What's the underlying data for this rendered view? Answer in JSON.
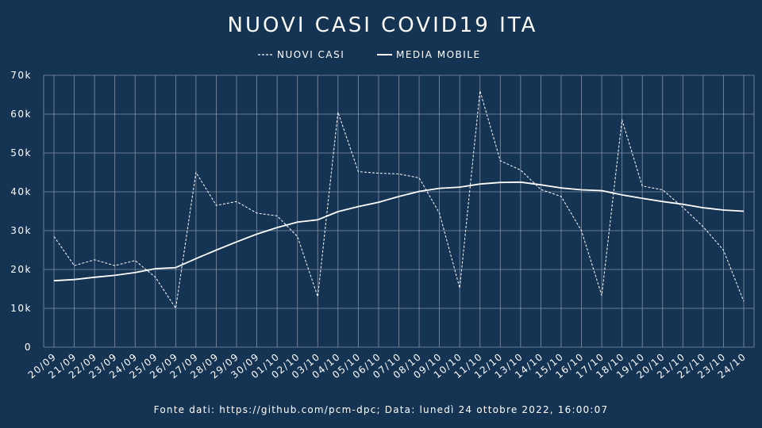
{
  "chart_data": {
    "type": "line",
    "title": "NUOVI CASI COVID19 ITA",
    "footer": "Fonte dati: https://github.com/pcm-dpc; Data: lunedì 24 ottobre 2022, 16:00:07",
    "x": [
      "20/09",
      "21/09",
      "22/09",
      "23/09",
      "24/09",
      "25/09",
      "26/09",
      "27/09",
      "28/09",
      "29/09",
      "30/09",
      "01/10",
      "02/10",
      "03/10",
      "04/10",
      "05/10",
      "06/10",
      "07/10",
      "08/10",
      "09/10",
      "10/10",
      "11/10",
      "12/10",
      "13/10",
      "14/10",
      "15/10",
      "16/10",
      "17/10",
      "18/10",
      "19/10",
      "20/10",
      "21/10",
      "22/10",
      "23/10",
      "24/10"
    ],
    "yticks": [
      "0",
      "10k",
      "20k",
      "30k",
      "40k",
      "50k",
      "60k",
      "70k"
    ],
    "ylim": [
      0,
      70000
    ],
    "grid": true,
    "legend_position": "top-center",
    "series": [
      {
        "name": "NUOVI CASI",
        "style": "dashed",
        "values": [
          28500,
          21000,
          22500,
          21000,
          22300,
          18000,
          10000,
          45000,
          36500,
          37500,
          34500,
          33800,
          28500,
          13000,
          60500,
          45200,
          44800,
          44600,
          43600,
          34500,
          15200,
          66000,
          48000,
          45600,
          40600,
          38800,
          30000,
          13300,
          58500,
          41500,
          40500,
          36000,
          31000,
          25000,
          11800
        ]
      },
      {
        "name": "MEDIA MOBILE",
        "style": "solid",
        "values": [
          17100,
          17400,
          18000,
          18500,
          19200,
          20200,
          20500,
          22800,
          25000,
          27100,
          29100,
          30800,
          32200,
          32800,
          34900,
          36200,
          37300,
          38800,
          40100,
          40900,
          41200,
          42000,
          42400,
          42500,
          41800,
          41000,
          40500,
          40300,
          39200,
          38300,
          37500,
          36800,
          35900,
          35300,
          35000
        ]
      }
    ],
    "colors": {
      "background": "#153353",
      "grid": "#8593a7",
      "line": "#ffffff"
    }
  }
}
